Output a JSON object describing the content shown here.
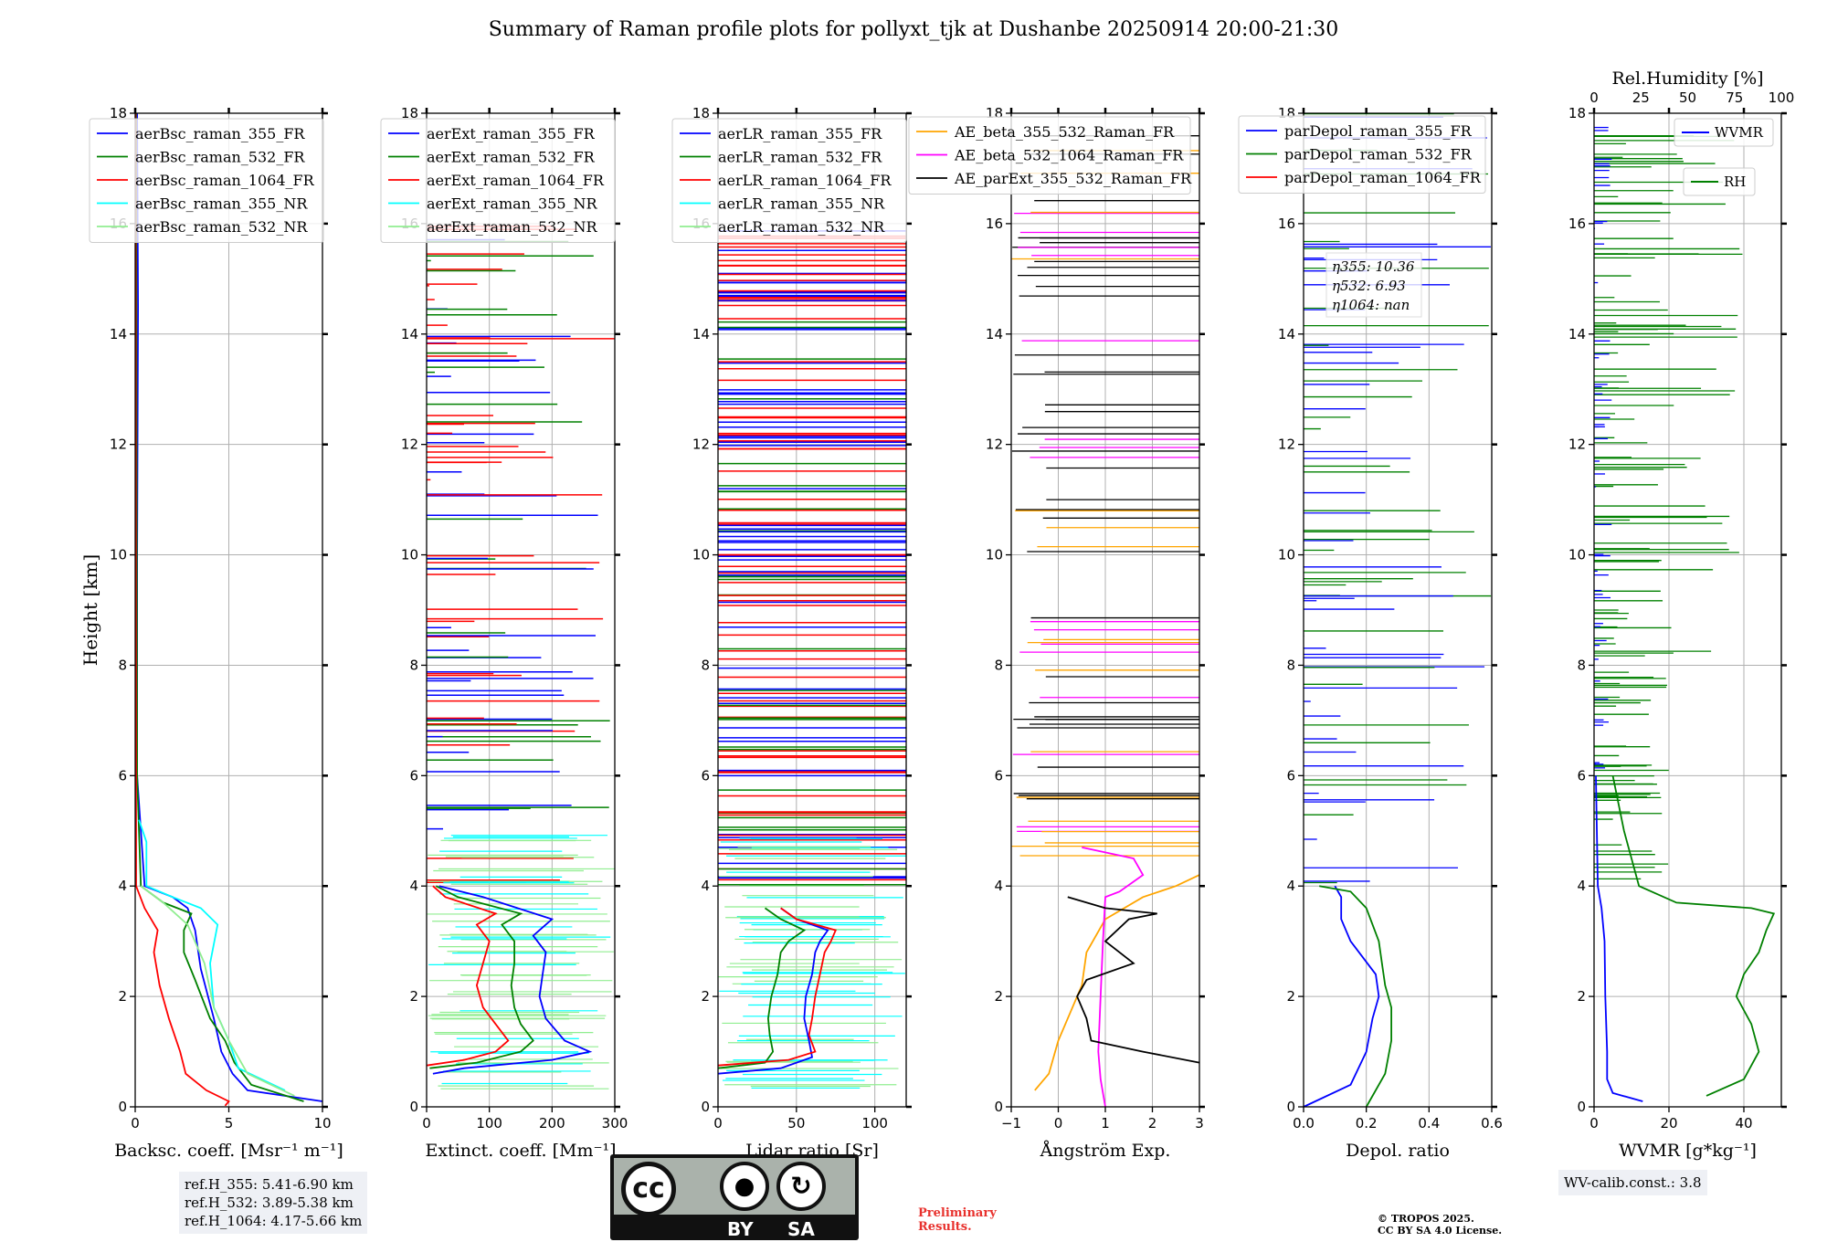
{
  "title": "Summary of Raman profile plots for pollyxt_tjk at Dushanbe 20250914 20:00-21:30",
  "ref_info": [
    "ref.H_355: 5.41-6.90 km",
    "ref.H_532: 3.89-5.38 km",
    "ref.H_1064: 4.17-5.66 km"
  ],
  "wv_calib": "WV-calib.const.: 3.8",
  "preliminary": [
    "Preliminary",
    "Results."
  ],
  "copyright": [
    "© TROPOS 2025.",
    "CC BY SA 4.0 License."
  ],
  "license_badge": {
    "by": "BY",
    "sa": "SA",
    "cc": "cc"
  },
  "depol_eta": [
    "η355: 10.36",
    "η532: 6.93",
    "η1064: nan"
  ],
  "colors": {
    "blue": "#0000ff",
    "green": "#008000",
    "red": "#ff0000",
    "cyan": "#00ffff",
    "lightgreen": "#90ee90",
    "orange": "#ffa500",
    "magenta": "#ff00ff",
    "black": "#000000"
  },
  "chart_data": [
    {
      "type": "line",
      "xlabel": "Backsc. coeff. [Msr⁻¹ m⁻¹]",
      "ylabel": "Height [km]",
      "xlim": [
        0,
        10
      ],
      "ylim": [
        0,
        18
      ],
      "xticks": [
        "0",
        "5",
        "10"
      ],
      "yticks": [
        "0",
        "2",
        "4",
        "6",
        "8",
        "10",
        "12",
        "14",
        "16",
        "18"
      ],
      "legend": [
        "aerBsc_raman_355_FR",
        "aerBsc_raman_532_FR",
        "aerBsc_raman_1064_FR",
        "aerBsc_raman_355_NR",
        "aerBsc_raman_532_NR"
      ],
      "series": [
        {
          "name": "aerBsc_raman_355_FR",
          "color": "blue",
          "x": [
            10,
            6,
            5.2,
            4.6,
            4.2,
            3.5,
            3.2,
            2.8,
            2.0,
            0.5,
            0.1,
            0.1,
            0.15,
            0.1
          ],
          "y": [
            0.1,
            0.3,
            0.6,
            1.0,
            1.6,
            2.5,
            3.2,
            3.6,
            3.8,
            4.0,
            6,
            10,
            14.5,
            18
          ]
        },
        {
          "name": "aerBsc_raman_532_FR",
          "color": "green",
          "x": [
            9,
            6.2,
            5.3,
            4.8,
            4.0,
            3.2,
            2.6,
            2.6,
            3.0,
            1.5,
            0.3,
            0.1,
            0.05
          ],
          "y": [
            0.1,
            0.4,
            0.8,
            1.2,
            1.6,
            2.3,
            2.8,
            3.2,
            3.5,
            3.7,
            4.0,
            6,
            18
          ]
        },
        {
          "name": "aerBsc_raman_1064_FR",
          "color": "red",
          "x": [
            4.8,
            5.0,
            3.8,
            2.7,
            2.4,
            1.8,
            1.3,
            1.0,
            1.2,
            0.5,
            0.05,
            0.02
          ],
          "y": [
            0.02,
            0.1,
            0.3,
            0.6,
            1.0,
            1.6,
            2.2,
            2.8,
            3.2,
            3.6,
            4.0,
            18
          ]
        },
        {
          "name": "aerBsc_raman_355_NR",
          "color": "cyan",
          "x": [
            8,
            5.5,
            5.0,
            4.2,
            4.0,
            4.4,
            3.5,
            2.0,
            0.6,
            0.6,
            0.2
          ],
          "y": [
            0.3,
            0.7,
            1.2,
            1.8,
            2.6,
            3.3,
            3.6,
            3.8,
            4.0,
            4.8,
            5.2
          ]
        },
        {
          "name": "aerBsc_raman_532_NR",
          "color": "lightgreen",
          "x": [
            8.5,
            6.0,
            5.0,
            4.2,
            3.7,
            2.8,
            1.5,
            0.3
          ],
          "y": [
            0.2,
            0.6,
            1.2,
            1.8,
            2.6,
            3.3,
            3.7,
            4.0
          ]
        }
      ]
    },
    {
      "type": "line",
      "xlabel": "Extinct. coeff. [Mm⁻¹]",
      "xlim": [
        0,
        300
      ],
      "ylim": [
        0,
        18
      ],
      "xticks": [
        "0",
        "100",
        "200",
        "300"
      ],
      "yticks": [
        "0",
        "2",
        "4",
        "6",
        "8",
        "10",
        "12",
        "14",
        "16",
        "18"
      ],
      "legend": [
        "aerExt_raman_355_FR",
        "aerExt_raman_532_FR",
        "aerExt_raman_1064_FR",
        "aerExt_raman_355_NR",
        "aerExt_raman_532_NR"
      ],
      "series": [
        {
          "name": "aerExt_raman_355_FR",
          "color": "blue",
          "x": [
            10,
            60,
            200,
            260,
            220,
            190,
            180,
            185,
            190,
            170,
            200,
            90,
            20
          ],
          "y": [
            0.6,
            0.7,
            0.85,
            1.0,
            1.2,
            1.6,
            2.0,
            2.4,
            2.8,
            3.1,
            3.4,
            3.8,
            4.0
          ]
        },
        {
          "name": "aerExt_raman_532_FR",
          "color": "green",
          "x": [
            5,
            80,
            150,
            170,
            150,
            140,
            135,
            140,
            140,
            120,
            150,
            50,
            15
          ],
          "y": [
            0.7,
            0.8,
            1.0,
            1.2,
            1.5,
            1.8,
            2.2,
            2.6,
            3.0,
            3.3,
            3.5,
            3.8,
            4.0
          ]
        },
        {
          "name": "aerExt_raman_1064_FR",
          "color": "red",
          "x": [
            0,
            60,
            110,
            130,
            110,
            90,
            80,
            90,
            100,
            80,
            110,
            30,
            10
          ],
          "y": [
            0.75,
            0.85,
            1.0,
            1.2,
            1.5,
            1.8,
            2.2,
            2.6,
            3.0,
            3.3,
            3.5,
            3.8,
            4.0
          ]
        }
      ]
    },
    {
      "type": "line",
      "xlabel": "Lidar ratio [Sr]",
      "xlim": [
        0,
        120
      ],
      "ylim": [
        0,
        18
      ],
      "xticks": [
        "0",
        "50",
        "100"
      ],
      "yticks": [
        "0",
        "2",
        "4",
        "6",
        "8",
        "10",
        "12",
        "14",
        "16",
        "18"
      ],
      "legend": [
        "aerLR_raman_355_FR",
        "aerLR_raman_532_FR",
        "aerLR_raman_1064_FR",
        "aerLR_raman_355_NR",
        "aerLR_raman_532_NR"
      ],
      "series": [
        {
          "name": "aerLR_raman_355_FR",
          "color": "blue",
          "x": [
            0,
            40,
            60,
            58,
            55,
            56,
            60,
            62,
            65,
            70,
            50,
            40
          ],
          "y": [
            0.6,
            0.7,
            0.9,
            1.2,
            1.6,
            2.0,
            2.4,
            2.8,
            3.0,
            3.2,
            3.4,
            3.6
          ]
        },
        {
          "name": "aerLR_raman_532_FR",
          "color": "green",
          "x": [
            0,
            30,
            35,
            33,
            32,
            34,
            38,
            40,
            45,
            55,
            40,
            30
          ],
          "y": [
            0.7,
            0.8,
            1.0,
            1.3,
            1.6,
            2.0,
            2.4,
            2.8,
            3.0,
            3.2,
            3.4,
            3.6
          ]
        },
        {
          "name": "aerLR_raman_1064_FR",
          "color": "red",
          "x": [
            0,
            45,
            62,
            58,
            60,
            62,
            65,
            68,
            72,
            75,
            50,
            40
          ],
          "y": [
            0.75,
            0.85,
            1.0,
            1.3,
            1.6,
            2.0,
            2.4,
            2.8,
            3.0,
            3.2,
            3.4,
            3.6
          ]
        }
      ]
    },
    {
      "type": "line",
      "xlabel": "Ångström Exp.",
      "xlim": [
        -1,
        3
      ],
      "ylim": [
        0,
        18
      ],
      "xticks": [
        "−1",
        "0",
        "1",
        "2",
        "3"
      ],
      "yticks": [
        "0",
        "2",
        "4",
        "6",
        "8",
        "10",
        "12",
        "14",
        "16",
        "18"
      ],
      "legend": [
        "AE_beta_355_532_Raman_FR",
        "AE_beta_532_1064_Raman_FR",
        "AE_parExt_355_532_Raman_FR"
      ],
      "series": [
        {
          "name": "AE_beta_355_532_Raman_FR",
          "color": "orange",
          "x": [
            -0.5,
            -0.2,
            0.0,
            0.3,
            0.5,
            0.6,
            1.0,
            1.8,
            2.5,
            3.0
          ],
          "y": [
            0.3,
            0.6,
            1.2,
            1.8,
            2.2,
            2.8,
            3.4,
            3.8,
            4.0,
            4.2
          ]
        },
        {
          "name": "AE_beta_532_1064_Raman_FR",
          "color": "magenta",
          "x": [
            1.0,
            0.9,
            0.85,
            0.9,
            0.95,
            1.0,
            1.3,
            1.8,
            1.6,
            0.5
          ],
          "y": [
            0.0,
            0.5,
            1.0,
            2.0,
            3.0,
            3.8,
            3.9,
            4.2,
            4.5,
            4.7
          ]
        },
        {
          "name": "AE_parExt_355_532_Raman_FR",
          "color": "black",
          "x": [
            3.0,
            1.8,
            0.7,
            0.6,
            0.4,
            0.6,
            1.6,
            1.0,
            1.5,
            2.1,
            1.0,
            0.2
          ],
          "y": [
            0.8,
            1.0,
            1.2,
            1.6,
            2.0,
            2.3,
            2.6,
            3.0,
            3.4,
            3.5,
            3.6,
            3.8
          ]
        }
      ]
    },
    {
      "type": "line",
      "xlabel": "Depol. ratio",
      "xlim": [
        0,
        0.6
      ],
      "ylim": [
        0,
        18
      ],
      "xticks": [
        "0.0",
        "0.2",
        "0.4",
        "0.6"
      ],
      "yticks": [
        "0",
        "2",
        "4",
        "6",
        "8",
        "10",
        "12",
        "14",
        "16",
        "18"
      ],
      "legend": [
        "parDepol_raman_355_FR",
        "parDepol_raman_532_FR",
        "parDepol_raman_1064_FR"
      ],
      "series": [
        {
          "name": "parDepol_raman_355_FR",
          "color": "blue",
          "x": [
            0.0,
            0.15,
            0.2,
            0.22,
            0.24,
            0.23,
            0.15,
            0.12,
            0.12,
            0.1
          ],
          "y": [
            0.0,
            0.4,
            1.0,
            1.6,
            2.0,
            2.4,
            3.0,
            3.4,
            3.8,
            4.0
          ]
        },
        {
          "name": "parDepol_raman_532_FR",
          "color": "green",
          "x": [
            0.2,
            0.26,
            0.28,
            0.28,
            0.26,
            0.25,
            0.24,
            0.2,
            0.15,
            0.05
          ],
          "y": [
            0.0,
            0.6,
            1.2,
            1.8,
            2.2,
            2.6,
            3.0,
            3.6,
            3.9,
            4.0
          ]
        }
      ]
    },
    {
      "type": "line",
      "xlabel": "WVMR [g*kg⁻¹]",
      "x2label": "Rel.Humidity [%]",
      "xlim": [
        0,
        50
      ],
      "x2lim": [
        0,
        100
      ],
      "ylim": [
        0,
        18
      ],
      "xticks": [
        "0",
        "20",
        "40"
      ],
      "x2ticks": [
        "0",
        "25",
        "50",
        "75",
        "100"
      ],
      "yticks": [
        "0",
        "2",
        "4",
        "6",
        "8",
        "10",
        "12",
        "14",
        "16",
        "18"
      ],
      "legend": [
        "WVMR",
        "RH"
      ],
      "series": [
        {
          "name": "WVMR",
          "color": "blue",
          "x": [
            13,
            5,
            3.5,
            3.5,
            3.0,
            2.8,
            2.0,
            1.0,
            0.5
          ],
          "y": [
            0.1,
            0.25,
            0.5,
            1.0,
            2.0,
            3.0,
            3.6,
            4.0,
            6.0
          ]
        },
        {
          "name": "RH",
          "color": "green",
          "x": [
            30,
            40,
            44,
            42,
            38,
            40,
            44,
            46,
            48,
            42,
            22,
            12,
            8,
            5
          ],
          "y": [
            0.2,
            0.5,
            1.0,
            1.5,
            2.0,
            2.4,
            2.8,
            3.2,
            3.5,
            3.6,
            3.7,
            4.0,
            5.0,
            6.0
          ]
        }
      ]
    }
  ]
}
